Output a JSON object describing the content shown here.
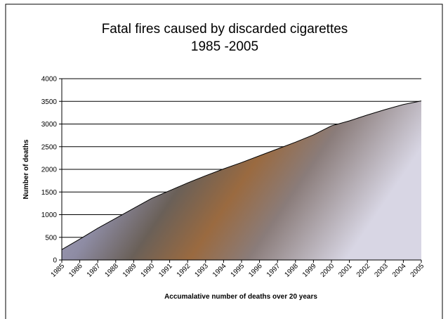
{
  "chart_data": {
    "type": "area",
    "title": [
      "Fatal fires caused by discarded cigarettes",
      "1985 -2005"
    ],
    "x_label": "Accumalative number of deaths over 20 years",
    "y_label": "Number of deaths",
    "x": [
      1985,
      1986,
      1987,
      1988,
      1989,
      1990,
      1991,
      1992,
      1993,
      1994,
      1995,
      1996,
      1997,
      1998,
      1999,
      2000,
      2001,
      2002,
      2003,
      2004,
      2005
    ],
    "values": [
      230,
      460,
      700,
      920,
      1140,
      1360,
      1530,
      1700,
      1860,
      2010,
      2150,
      2300,
      2450,
      2600,
      2760,
      2960,
      3070,
      3200,
      3320,
      3430,
      3510
    ],
    "xlim": [
      1985,
      2005
    ],
    "xticks": [
      1985,
      1986,
      1987,
      1988,
      1989,
      1990,
      1991,
      1992,
      1993,
      1994,
      1995,
      1996,
      1997,
      1998,
      1999,
      2000,
      2001,
      2002,
      2003,
      2004,
      2005
    ],
    "ylim": [
      0,
      4000
    ],
    "yticks": [
      0,
      500,
      1000,
      1500,
      2000,
      2500,
      3000,
      3500,
      4000
    ],
    "grid": true
  }
}
